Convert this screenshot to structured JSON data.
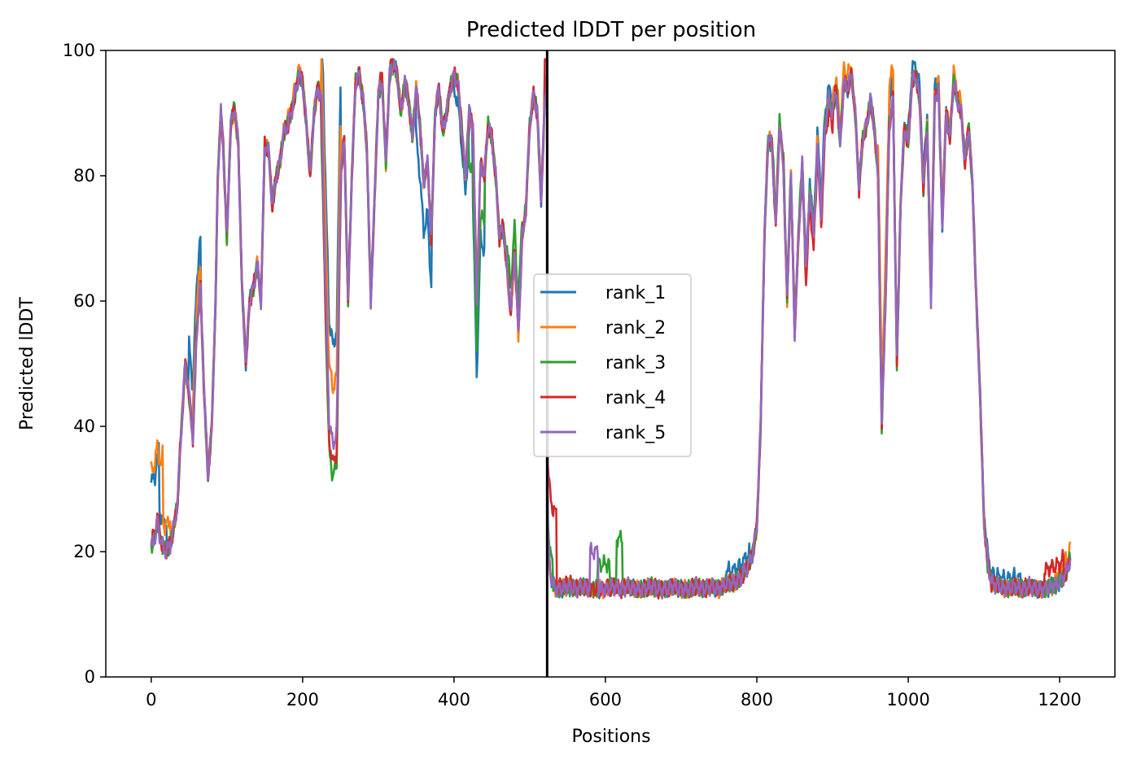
{
  "chart_data": {
    "type": "line",
    "title": "Predicted lDDT per position",
    "xlabel": "Positions",
    "ylabel": "Predicted lDDT",
    "xlim": [
      -60,
      1273
    ],
    "ylim": [
      0,
      100
    ],
    "xticks": [
      0,
      200,
      400,
      600,
      800,
      1000,
      1200
    ],
    "yticks": [
      0,
      20,
      40,
      60,
      80,
      100
    ],
    "grid": false,
    "legend_position": "center",
    "chain_break": 523,
    "colors": {
      "rank_1": "#1f77b4",
      "rank_2": "#ff7f0e",
      "rank_3": "#2ca02c",
      "rank_4": "#d62728",
      "rank_5": "#9467bd",
      "chain_break": "#000000"
    },
    "base_profile": {
      "x": [
        0,
        5,
        8,
        12,
        18,
        25,
        30,
        35,
        38,
        42,
        45,
        50,
        55,
        60,
        65,
        70,
        75,
        80,
        85,
        88,
        92,
        95,
        100,
        105,
        110,
        115,
        120,
        125,
        130,
        135,
        140,
        145,
        150,
        155,
        160,
        165,
        170,
        175,
        180,
        185,
        190,
        195,
        200,
        205,
        210,
        215,
        220,
        225,
        230,
        235,
        240,
        245,
        250,
        255,
        260,
        265,
        270,
        275,
        280,
        285,
        290,
        295,
        300,
        305,
        310,
        315,
        320,
        325,
        330,
        335,
        340,
        345,
        350,
        355,
        360,
        365,
        370,
        375,
        380,
        385,
        390,
        395,
        400,
        405,
        410,
        415,
        420,
        425,
        430,
        435,
        440,
        445,
        450,
        455,
        460,
        465,
        470,
        475,
        480,
        485,
        490,
        495,
        500,
        505,
        510,
        515,
        520,
        523,
        524,
        527,
        530,
        535,
        540,
        550,
        560,
        570,
        580,
        590,
        600,
        610,
        620,
        630,
        640,
        650,
        660,
        670,
        680,
        690,
        700,
        710,
        720,
        730,
        740,
        750,
        760,
        770,
        780,
        790,
        795,
        800,
        805,
        810,
        815,
        820,
        825,
        830,
        835,
        840,
        845,
        850,
        855,
        860,
        865,
        870,
        875,
        880,
        885,
        890,
        895,
        900,
        905,
        910,
        915,
        920,
        925,
        930,
        935,
        940,
        945,
        950,
        955,
        960,
        965,
        970,
        975,
        980,
        985,
        990,
        995,
        1000,
        1005,
        1010,
        1015,
        1020,
        1025,
        1030,
        1035,
        1040,
        1045,
        1050,
        1055,
        1060,
        1065,
        1070,
        1075,
        1080,
        1085,
        1090,
        1095,
        1100,
        1105,
        1110,
        1120,
        1130,
        1140,
        1150,
        1160,
        1170,
        1180,
        1190,
        1200,
        1205,
        1210,
        1214
      ],
      "y": [
        21,
        22,
        25,
        22,
        20,
        21,
        24,
        28,
        36,
        44,
        50,
        45,
        38,
        55,
        62,
        45,
        32,
        40,
        60,
        80,
        90,
        85,
        70,
        88,
        91,
        85,
        62,
        50,
        60,
        62,
        66,
        60,
        85,
        84,
        75,
        80,
        82,
        87,
        88,
        90,
        93,
        96,
        95,
        88,
        80,
        90,
        94,
        92,
        65,
        42,
        38,
        40,
        80,
        86,
        60,
        80,
        95,
        96,
        92,
        84,
        60,
        76,
        93,
        95,
        82,
        96,
        98,
        96,
        90,
        95,
        92,
        86,
        94,
        88,
        79,
        82,
        70,
        90,
        94,
        87,
        90,
        94,
        96,
        95,
        88,
        80,
        90,
        88,
        60,
        82,
        80,
        88,
        86,
        80,
        70,
        72,
        65,
        58,
        68,
        55,
        70,
        75,
        88,
        93,
        90,
        76,
        92,
        96,
        22,
        17,
        15,
        14,
        14,
        14.5,
        14,
        14.5,
        14,
        14,
        14,
        14.5,
        14,
        14.5,
        14,
        14,
        14.5,
        14,
        14,
        14.5,
        14,
        14,
        14.5,
        14,
        14.5,
        14,
        15,
        15,
        16,
        18,
        20,
        24,
        40,
        70,
        86,
        85,
        72,
        88,
        82,
        60,
        80,
        55,
        70,
        82,
        65,
        78,
        70,
        85,
        74,
        88,
        92,
        90,
        94,
        85,
        95,
        94,
        96,
        90,
        78,
        86,
        88,
        92,
        88,
        80,
        40,
        60,
        88,
        92,
        50,
        76,
        88,
        85,
        95,
        96,
        92,
        78,
        88,
        60,
        92,
        94,
        72,
        90,
        86,
        95,
        92,
        90,
        82,
        88,
        78,
        60,
        45,
        25,
        18,
        15,
        14.5,
        14,
        14.5,
        14,
        14.5,
        14,
        14,
        14.5,
        15,
        16,
        17,
        19
      ]
    },
    "series": [
      {
        "name": "rank_1",
        "offsets": [
          [
            0,
            10,
            10
          ],
          [
            10,
            20,
            4
          ],
          [
            50,
            65,
            8
          ],
          [
            225,
            250,
            15
          ],
          [
            350,
            370,
            -8
          ],
          [
            400,
            420,
            -3
          ],
          [
            425,
            440,
            -12
          ],
          [
            760,
            790,
            2
          ],
          [
            870,
            900,
            2
          ],
          [
            960,
            980,
            4
          ],
          [
            1000,
            1040,
            2
          ],
          [
            1100,
            1150,
            1.5
          ]
        ]
      },
      {
        "name": "rank_2",
        "offsets": [
          [
            0,
            15,
            12
          ],
          [
            15,
            25,
            4
          ],
          [
            55,
            65,
            4
          ],
          [
            180,
            200,
            1
          ],
          [
            225,
            250,
            8
          ],
          [
            900,
            925,
            2
          ],
          [
            960,
            980,
            6
          ],
          [
            1030,
            1070,
            1.5
          ],
          [
            1195,
            1214,
            2
          ]
        ]
      },
      {
        "name": "rank_3",
        "offsets": [
          [
            225,
            250,
            -6
          ],
          [
            420,
            440,
            -8
          ],
          [
            470,
            490,
            4
          ],
          [
            524,
            530,
            3
          ],
          [
            590,
            605,
            4
          ],
          [
            615,
            622,
            8
          ],
          [
            820,
            860,
            1
          ]
        ]
      },
      {
        "name": "rank_4",
        "offsets": [
          [
            0,
            10,
            1
          ],
          [
            225,
            250,
            -4
          ],
          [
            300,
            320,
            1
          ],
          [
            520,
            535,
            12
          ],
          [
            540,
            560,
            0.5
          ],
          [
            860,
            900,
            -2
          ],
          [
            1180,
            1205,
            3
          ]
        ]
      },
      {
        "name": "rank_5",
        "offsets": [
          [
            0,
            10,
            0
          ],
          [
            230,
            250,
            -1
          ],
          [
            580,
            590,
            6
          ]
        ]
      }
    ]
  }
}
